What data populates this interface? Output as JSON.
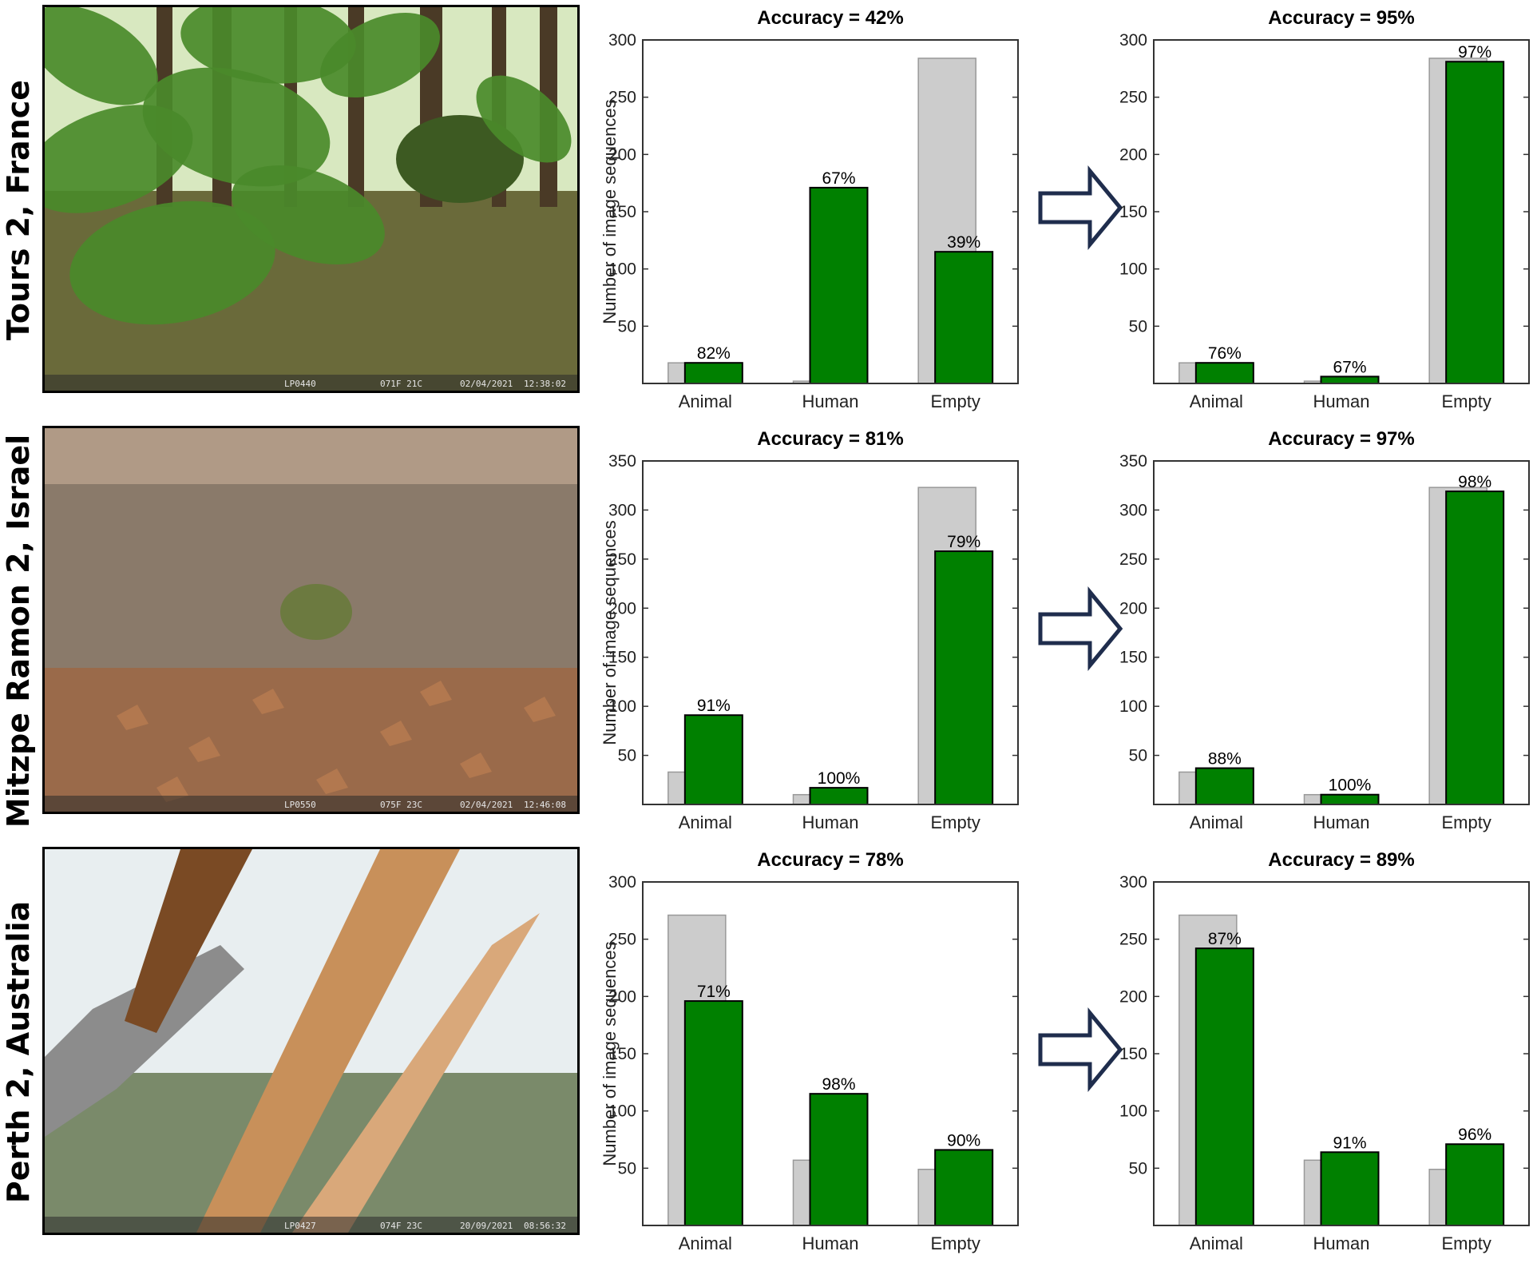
{
  "rows": [
    {
      "site": "Tours 2, France",
      "photo": {
        "scene": "forest",
        "colors": {
          "sky": "#d8e8c0",
          "ground": "#6a6a3a",
          "leaves": "#4a8a2a"
        },
        "stamp": {
          "camera": "LP0440",
          "temp": "071F 21C",
          "date": "02/04/2021",
          "time": "12:38:02"
        }
      }
    },
    {
      "site": "Mitzpe Ramon 2, Israel",
      "photo": {
        "scene": "desert",
        "colors": {
          "sky": "#b09a86",
          "ground": "#8a7a6a",
          "leaves": "#6c7a40"
        },
        "stamp": {
          "camera": "LP0550",
          "temp": "075F 23C",
          "date": "02/04/2021",
          "time": "12:46:08"
        }
      }
    },
    {
      "site": "Perth 2, Australia",
      "photo": {
        "scene": "bush",
        "colors": {
          "sky": "#e8eef0",
          "ground": "#7a8a6a",
          "leaves": "#c8905a"
        },
        "stamp": {
          "camera": "LP0427",
          "temp": "074F 23C",
          "date": "20/09/2021",
          "time": "08:56:32"
        }
      }
    }
  ],
  "colors": {
    "total": "#cccccc",
    "total_stroke": "#999999",
    "correct": "#008000",
    "arrow": "#1f2d4d"
  },
  "chart_data": [
    {
      "type": "bar",
      "row": 0,
      "stage": "before",
      "title": "Accuracy = 42%",
      "ylabel": "Number of image sequences",
      "categories": [
        "Animal",
        "Human",
        "Empty"
      ],
      "ylim": [
        0,
        300
      ],
      "yticks": [
        50,
        100,
        150,
        200,
        250,
        300
      ],
      "series": [
        {
          "values": [
            18,
            2,
            284
          ]
        },
        {
          "values": [
            18,
            171,
            115
          ]
        }
      ],
      "bar_labels": [
        "82%",
        "67%",
        "39%"
      ]
    },
    {
      "type": "bar",
      "row": 0,
      "stage": "after",
      "title": "Accuracy = 95%",
      "ylabel": "",
      "categories": [
        "Animal",
        "Human",
        "Empty"
      ],
      "ylim": [
        0,
        300
      ],
      "yticks": [
        50,
        100,
        150,
        200,
        250,
        300
      ],
      "series": [
        {
          "values": [
            18,
            2,
            284
          ]
        },
        {
          "values": [
            18,
            6,
            281
          ]
        }
      ],
      "bar_labels": [
        "76%",
        "67%",
        "97%"
      ]
    },
    {
      "type": "bar",
      "row": 1,
      "stage": "before",
      "title": "Accuracy = 81%",
      "ylabel": "Number of image sequences",
      "categories": [
        "Animal",
        "Human",
        "Empty"
      ],
      "ylim": [
        0,
        350
      ],
      "yticks": [
        50,
        100,
        150,
        200,
        250,
        300,
        350
      ],
      "series": [
        {
          "values": [
            33,
            10,
            323
          ]
        },
        {
          "values": [
            91,
            17,
            258
          ]
        }
      ],
      "bar_labels": [
        "91%",
        "100%",
        "79%"
      ]
    },
    {
      "type": "bar",
      "row": 1,
      "stage": "after",
      "title": "Accuracy = 97%",
      "ylabel": "",
      "categories": [
        "Animal",
        "Human",
        "Empty"
      ],
      "ylim": [
        0,
        350
      ],
      "yticks": [
        50,
        100,
        150,
        200,
        250,
        300,
        350
      ],
      "series": [
        {
          "values": [
            33,
            10,
            323
          ]
        },
        {
          "values": [
            37,
            10,
            319
          ]
        }
      ],
      "bar_labels": [
        "88%",
        "100%",
        "98%"
      ]
    },
    {
      "type": "bar",
      "row": 2,
      "stage": "before",
      "title": "Accuracy = 78%",
      "ylabel": "Number of image sequences",
      "categories": [
        "Animal",
        "Human",
        "Empty"
      ],
      "ylim": [
        0,
        300
      ],
      "yticks": [
        50,
        100,
        150,
        200,
        250,
        300
      ],
      "series": [
        {
          "values": [
            271,
            57,
            49
          ]
        },
        {
          "values": [
            196,
            115,
            66
          ]
        }
      ],
      "bar_labels": [
        "71%",
        "98%",
        "90%"
      ]
    },
    {
      "type": "bar",
      "row": 2,
      "stage": "after",
      "title": "Accuracy = 89%",
      "ylabel": "",
      "categories": [
        "Animal",
        "Human",
        "Empty"
      ],
      "ylim": [
        0,
        300
      ],
      "yticks": [
        50,
        100,
        150,
        200,
        250,
        300
      ],
      "series": [
        {
          "values": [
            271,
            57,
            49
          ]
        },
        {
          "values": [
            242,
            64,
            71
          ]
        }
      ],
      "bar_labels": [
        "87%",
        "91%",
        "96%"
      ]
    }
  ]
}
